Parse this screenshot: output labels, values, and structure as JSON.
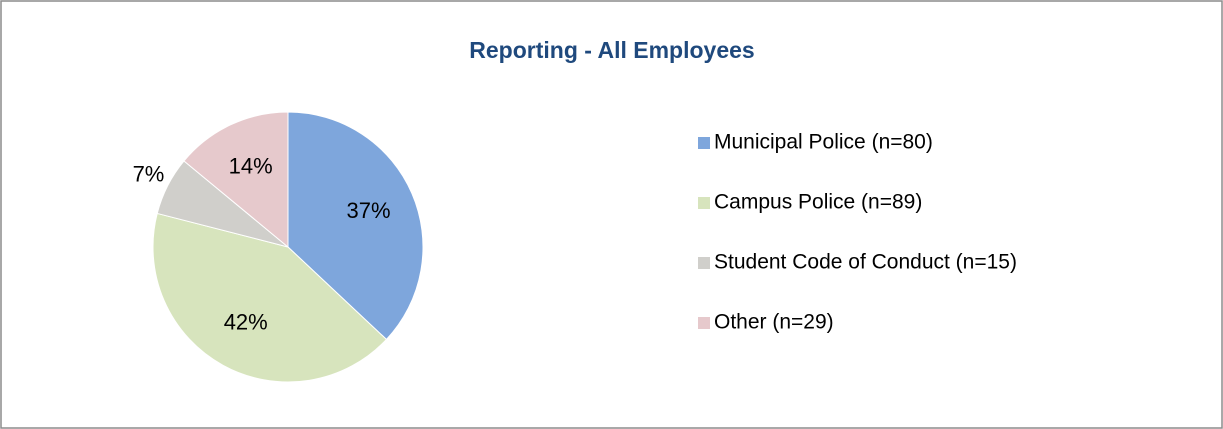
{
  "chart_data": {
    "type": "pie",
    "title": "Reporting - All Employees",
    "categories": [
      "Municipal Police (n=80)",
      "Campus Police (n=89)",
      "Student Code of Conduct (n=15)",
      "Other (n=29)"
    ],
    "values": [
      37,
      42,
      7,
      14
    ],
    "value_labels": [
      "37%",
      "42%",
      "7%",
      "14%"
    ],
    "colors": [
      "#7ea6dc",
      "#d7e4bd",
      "#d0cfcb",
      "#e6c9cc"
    ],
    "legend": "right"
  }
}
